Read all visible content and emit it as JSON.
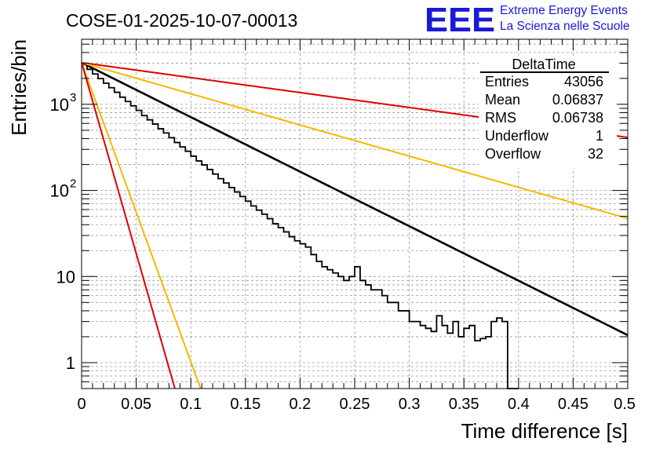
{
  "header": {
    "run_title": "COSE-01-2025-10-07-00013",
    "logo_text": "EEE",
    "logo_line1": "Extreme Energy Events",
    "logo_line2": "La Scienza nelle Scuole"
  },
  "stats": {
    "title": "DeltaTime",
    "rows": [
      {
        "label": "Entries",
        "value": "43056"
      },
      {
        "label": "Mean",
        "value": "0.06837"
      },
      {
        "label": "RMS",
        "value": "0.06738"
      },
      {
        "label": "Underflow",
        "value": "1"
      },
      {
        "label": "Overflow",
        "value": "32"
      }
    ]
  },
  "colors": {
    "histogram": "#000000",
    "fit": "#000000",
    "red": "#dd0000",
    "orange": "#f5b800",
    "logo": "#1a1ad6"
  },
  "chart_data": {
    "type": "line",
    "title": "DeltaTime",
    "xlabel": "Time difference [s]",
    "ylabel": "Entries/bin",
    "xlim": [
      0,
      0.5
    ],
    "ylim": [
      0.5,
      5700
    ],
    "yscale": "log",
    "grid": true,
    "xticks": [
      "0",
      "0.05",
      "0.1",
      "0.15",
      "0.2",
      "0.25",
      "0.3",
      "0.35",
      "0.4",
      "0.45",
      "0.5"
    ],
    "yticks": [
      {
        "value": 1,
        "label": "1",
        "sup": ""
      },
      {
        "value": 10,
        "label": "10",
        "sup": ""
      },
      {
        "value": 100,
        "label": "10",
        "sup": "2"
      },
      {
        "value": 1000,
        "label": "10",
        "sup": "3"
      }
    ],
    "histogram": {
      "name": "DeltaTime",
      "bin_width": 0.005,
      "values": [
        2920,
        2550,
        2250,
        1990,
        1760,
        1560,
        1380,
        1210,
        1080,
        960,
        850,
        740,
        660,
        590,
        520,
        465,
        410,
        360,
        320,
        285,
        250,
        220,
        198,
        175,
        155,
        137,
        122,
        108,
        96,
        85,
        75,
        66,
        59,
        53,
        47,
        41,
        37,
        33,
        29,
        26,
        24,
        22,
        18,
        15,
        13,
        12,
        11,
        10,
        9,
        10,
        13,
        9,
        8,
        7,
        7,
        6,
        5,
        5,
        4,
        4,
        3,
        3,
        2.7,
        2.5,
        2.3,
        3.5,
        2.7,
        2.2,
        3,
        2,
        2.5,
        2.7,
        1.8,
        1.9,
        2,
        3,
        3.3,
        3,
        0.5,
        0.5
      ]
    },
    "series": [
      {
        "name": "fit",
        "color": "#000000",
        "A": 3050,
        "tau": 0.0686
      },
      {
        "name": "red-slow",
        "color": "#dd0000",
        "A": 3050,
        "tau": 0.25
      },
      {
        "name": "orange-slow",
        "color": "#f5b800",
        "A": 3050,
        "tau": 0.12
      },
      {
        "name": "orange-fast",
        "color": "#f5b800",
        "A": 3050,
        "tau": 0.0125
      },
      {
        "name": "red-fast",
        "color": "#dd0000",
        "A": 3050,
        "tau": 0.0098
      }
    ]
  }
}
